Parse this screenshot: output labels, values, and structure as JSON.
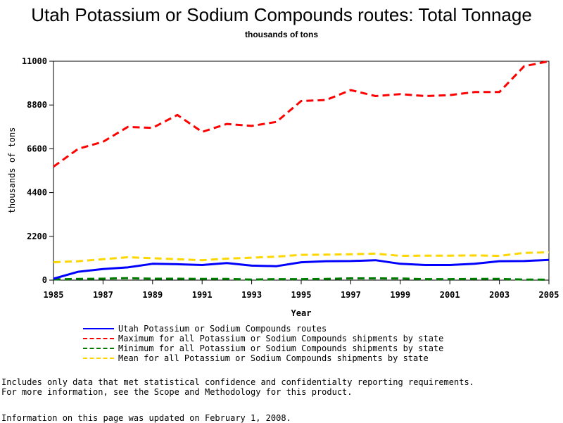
{
  "chart_data": {
    "type": "line",
    "title": "Utah Potassium or Sodium Compounds routes: Total Tonnage",
    "subtitle": "thousands of tons",
    "xlabel": "Year",
    "ylabel": "thousands of tons",
    "xlim": [
      1985,
      2005
    ],
    "ylim": [
      0,
      11000
    ],
    "xticks": [
      "1985",
      "1987",
      "1989",
      "1991",
      "1993",
      "1995",
      "1997",
      "1999",
      "2001",
      "2003",
      "2005"
    ],
    "yticks": [
      "0",
      "2200",
      "4400",
      "6600",
      "8800",
      "11000"
    ],
    "x": [
      1985,
      1986,
      1987,
      1988,
      1989,
      1990,
      1991,
      1992,
      1993,
      1994,
      1995,
      1996,
      1997,
      1998,
      1999,
      2000,
      2001,
      2002,
      2003,
      2004,
      2005
    ],
    "series": [
      {
        "name": "Utah Potassium or Sodium Compounds routes",
        "color": "#0000ff",
        "dash": "solid",
        "width": 3,
        "values": [
          70,
          420,
          560,
          640,
          820,
          800,
          760,
          860,
          730,
          700,
          900,
          950,
          960,
          1000,
          820,
          760,
          760,
          820,
          950,
          960,
          1020
        ]
      },
      {
        "name": "Maximum for all Potassium or Sodium Compounds shipments by state",
        "color": "#ff0000",
        "dash": "dashed",
        "width": 3,
        "values": [
          5700,
          6600,
          6950,
          7700,
          7650,
          8300,
          7450,
          7850,
          7750,
          7950,
          9000,
          9050,
          9550,
          9250,
          9350,
          9250,
          9300,
          9450,
          9450,
          10750,
          11000
        ]
      },
      {
        "name": "Minimum for all Potassium or Sodium Compounds shipments by state",
        "color": "#007a00",
        "dash": "dashed",
        "width": 3,
        "values": [
          40,
          60,
          70,
          100,
          70,
          70,
          60,
          60,
          30,
          50,
          50,
          60,
          90,
          90,
          80,
          50,
          50,
          60,
          60,
          30,
          20
        ]
      },
      {
        "name": "Mean for all Potassium or Sodium Compounds shipments by state",
        "color": "#ffd700",
        "dash": "dashed",
        "width": 3,
        "values": [
          900,
          950,
          1050,
          1150,
          1100,
          1050,
          1000,
          1080,
          1130,
          1180,
          1270,
          1280,
          1300,
          1330,
          1220,
          1230,
          1230,
          1240,
          1220,
          1370,
          1400
        ]
      }
    ]
  },
  "footnote": {
    "lines": [
      "Includes only data that met statistical confidence and confidentialty reporting requirements.",
      "For more information, see the Scope and Methodology for this product."
    ],
    "updated": "Information on this page was updated on February 1, 2008."
  }
}
